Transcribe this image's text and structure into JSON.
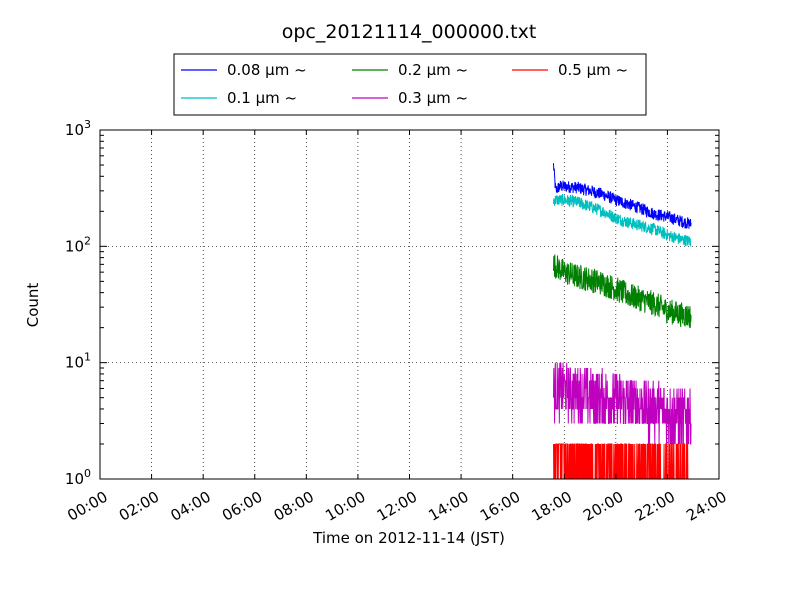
{
  "chart_data": {
    "type": "line",
    "title": "opc_20121114_000000.txt",
    "xlabel": "Time on 2012-11-14 (JST)",
    "ylabel": "Count",
    "x_scale": "time",
    "y_scale": "log",
    "xlim": [
      "00:00",
      "24:00"
    ],
    "ylim": [
      1,
      1000
    ],
    "x_tick_labels": [
      "00:00",
      "02:00",
      "04:00",
      "06:00",
      "08:00",
      "10:00",
      "12:00",
      "14:00",
      "16:00",
      "18:00",
      "20:00",
      "22:00",
      "24:00"
    ],
    "y_ticks": [
      {
        "base": "10",
        "exp": "0"
      },
      {
        "base": "10",
        "exp": "1"
      },
      {
        "base": "10",
        "exp": "2"
      },
      {
        "base": "10",
        "exp": "3"
      }
    ],
    "grid": true,
    "legend_position": "top-center",
    "legend_unit_prefix": "μm",
    "series": [
      {
        "name": "0.08 μm ~",
        "label_value": "0.08",
        "color": "#0000ff",
        "x": [
          "17:35",
          "17:40",
          "17:50",
          "18:30",
          "19:00",
          "19:30",
          "20:00",
          "20:30",
          "21:00",
          "21:30",
          "22:00",
          "22:30",
          "22:55"
        ],
        "y": [
          500,
          300,
          330,
          320,
          300,
          280,
          250,
          230,
          210,
          190,
          180,
          165,
          155
        ],
        "noise": 0.12
      },
      {
        "name": "0.1 μm ~",
        "label_value": "0.1",
        "color": "#00bfbf",
        "x": [
          "17:35",
          "18:00",
          "18:30",
          "19:00",
          "19:30",
          "20:00",
          "20:30",
          "21:00",
          "21:30",
          "22:00",
          "22:30",
          "22:55"
        ],
        "y": [
          250,
          250,
          240,
          220,
          200,
          175,
          160,
          150,
          140,
          125,
          115,
          110
        ],
        "noise": 0.12
      },
      {
        "name": "0.2 μm ~",
        "label_value": "0.2",
        "color": "#008000",
        "x": [
          "17:35",
          "18:00",
          "18:30",
          "19:00",
          "19:30",
          "20:00",
          "20:30",
          "21:00",
          "21:30",
          "22:00",
          "22:30",
          "22:55"
        ],
        "y": [
          70,
          60,
          55,
          52,
          48,
          43,
          38,
          35,
          32,
          28,
          26,
          25
        ],
        "noise": 0.25
      },
      {
        "name": "0.3 μm ~",
        "label_value": "0.3",
        "color": "#bf00bf",
        "x": [
          "17:35",
          "18:30",
          "19:30",
          "20:30",
          "21:30",
          "22:55"
        ],
        "y": [
          6,
          5.5,
          5,
          4.5,
          4,
          3.5
        ],
        "noise": 0.55,
        "min": 2,
        "max": 15
      },
      {
        "name": "0.5 μm ~",
        "label_value": "0.5",
        "color": "#ff0000",
        "x": [
          "17:35",
          "18:30",
          "19:30",
          "20:30",
          "21:30",
          "22:55"
        ],
        "y": [
          1.5,
          1.4,
          1.3,
          1.2,
          1.2,
          1.1
        ],
        "noise": 0.5,
        "min": 1,
        "max": 4
      }
    ]
  }
}
